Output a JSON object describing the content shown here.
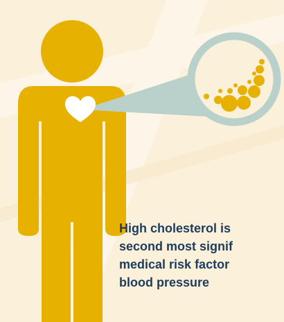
{
  "caption": {
    "lines": [
      "High cholesterol is",
      "second most signif",
      "medical risk factor",
      "blood pressure"
    ]
  }
}
